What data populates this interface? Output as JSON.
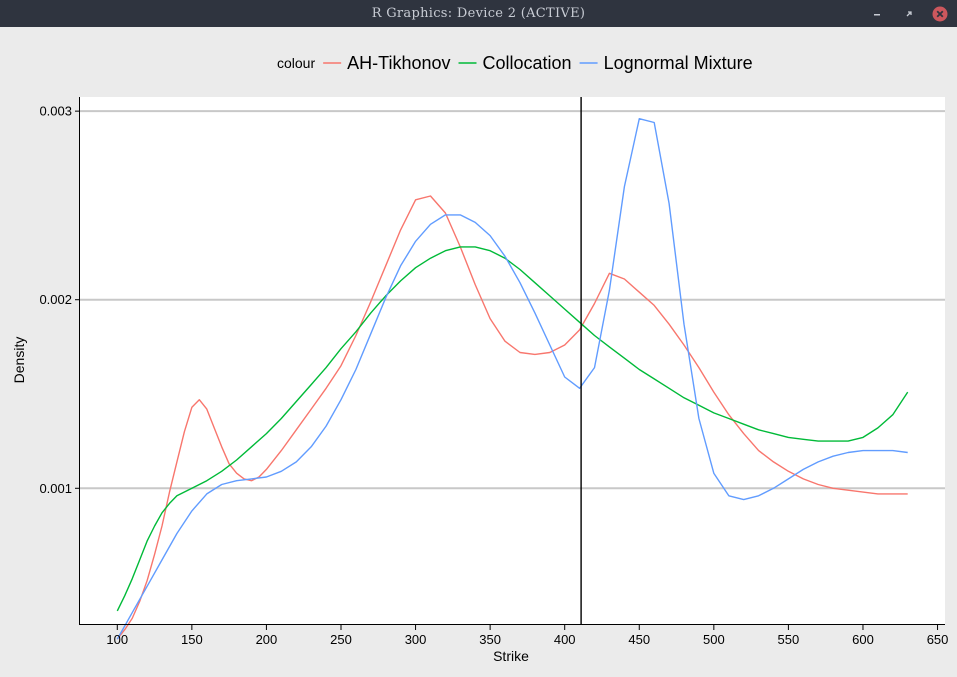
{
  "window": {
    "title": "R Graphics: Device 2 (ACTIVE)",
    "colors": {
      "titlebar_bg": "#2f343f",
      "titlebar_text": "#c8ccd4",
      "close_bg": "#cc575d"
    }
  },
  "chart_data": {
    "type": "line",
    "title": "",
    "xlabel": "Strike",
    "ylabel": "Density",
    "xlim": [
      75,
      655
    ],
    "ylim": [
      0.000275,
      0.003075
    ],
    "x_ticks": [
      100,
      150,
      200,
      250,
      300,
      350,
      400,
      450,
      500,
      550,
      600,
      650
    ],
    "y_ticks": [
      0.001,
      0.002,
      0.003
    ],
    "y_tick_labels": [
      "0.001",
      "0.002",
      "0.003"
    ],
    "grid": "horizontal major lines",
    "vline": 411,
    "legend": {
      "title": "colour",
      "position": "top"
    },
    "series": [
      {
        "name": "AH-Tikhonov",
        "color": "#f8766d",
        "points": [
          [
            100,
            0.0002
          ],
          [
            105,
            0.00025
          ],
          [
            110,
            0.00031
          ],
          [
            115,
            0.0004
          ],
          [
            120,
            0.00051
          ],
          [
            125,
            0.00065
          ],
          [
            130,
            0.0008
          ],
          [
            135,
            0.00098
          ],
          [
            140,
            0.00114
          ],
          [
            145,
            0.0013
          ],
          [
            150,
            0.00143
          ],
          [
            155,
            0.00147
          ],
          [
            160,
            0.00142
          ],
          [
            165,
            0.00132
          ],
          [
            170,
            0.00122
          ],
          [
            175,
            0.00113
          ],
          [
            180,
            0.00108
          ],
          [
            185,
            0.00105
          ],
          [
            190,
            0.00104
          ],
          [
            195,
            0.00106
          ],
          [
            200,
            0.0011
          ],
          [
            210,
            0.0012
          ],
          [
            220,
            0.00131
          ],
          [
            230,
            0.00142
          ],
          [
            240,
            0.00153
          ],
          [
            250,
            0.00165
          ],
          [
            260,
            0.00181
          ],
          [
            270,
            0.00199
          ],
          [
            280,
            0.00218
          ],
          [
            290,
            0.00237
          ],
          [
            300,
            0.00253
          ],
          [
            310,
            0.00255
          ],
          [
            320,
            0.00246
          ],
          [
            330,
            0.00228
          ],
          [
            340,
            0.00208
          ],
          [
            350,
            0.0019
          ],
          [
            360,
            0.00178
          ],
          [
            370,
            0.00172
          ],
          [
            380,
            0.00171
          ],
          [
            390,
            0.00172
          ],
          [
            400,
            0.00176
          ],
          [
            410,
            0.00184
          ],
          [
            420,
            0.00198
          ],
          [
            430,
            0.00214
          ],
          [
            440,
            0.00211
          ],
          [
            450,
            0.00204
          ],
          [
            460,
            0.00197
          ],
          [
            470,
            0.00187
          ],
          [
            480,
            0.00176
          ],
          [
            490,
            0.00164
          ],
          [
            500,
            0.00151
          ],
          [
            510,
            0.00139
          ],
          [
            520,
            0.00129
          ],
          [
            530,
            0.0012
          ],
          [
            540,
            0.00114
          ],
          [
            550,
            0.00109
          ],
          [
            560,
            0.00105
          ],
          [
            570,
            0.00102
          ],
          [
            580,
            0.001
          ],
          [
            590,
            0.00099
          ],
          [
            600,
            0.00098
          ],
          [
            610,
            0.00097
          ],
          [
            620,
            0.00097
          ],
          [
            630,
            0.00097
          ]
        ]
      },
      {
        "name": "Collocation",
        "color": "#00ba38",
        "points": [
          [
            100,
            0.00035
          ],
          [
            105,
            0.00043
          ],
          [
            110,
            0.00052
          ],
          [
            115,
            0.00062
          ],
          [
            120,
            0.00072
          ],
          [
            125,
            0.0008
          ],
          [
            130,
            0.00087
          ],
          [
            135,
            0.00092
          ],
          [
            140,
            0.00096
          ],
          [
            150,
            0.001
          ],
          [
            160,
            0.00104
          ],
          [
            170,
            0.00109
          ],
          [
            180,
            0.00115
          ],
          [
            190,
            0.00122
          ],
          [
            200,
            0.00129
          ],
          [
            210,
            0.00137
          ],
          [
            220,
            0.00146
          ],
          [
            230,
            0.00155
          ],
          [
            240,
            0.00164
          ],
          [
            250,
            0.00174
          ],
          [
            260,
            0.00183
          ],
          [
            270,
            0.00193
          ],
          [
            280,
            0.00202
          ],
          [
            290,
            0.0021
          ],
          [
            300,
            0.00217
          ],
          [
            310,
            0.00222
          ],
          [
            320,
            0.00226
          ],
          [
            330,
            0.00228
          ],
          [
            340,
            0.00228
          ],
          [
            350,
            0.00226
          ],
          [
            360,
            0.00222
          ],
          [
            370,
            0.00216
          ],
          [
            380,
            0.00209
          ],
          [
            390,
            0.00202
          ],
          [
            400,
            0.00195
          ],
          [
            410,
            0.00188
          ],
          [
            420,
            0.00181
          ],
          [
            430,
            0.00175
          ],
          [
            440,
            0.00169
          ],
          [
            450,
            0.00163
          ],
          [
            460,
            0.00158
          ],
          [
            470,
            0.00153
          ],
          [
            480,
            0.00148
          ],
          [
            490,
            0.00144
          ],
          [
            500,
            0.0014
          ],
          [
            510,
            0.00137
          ],
          [
            520,
            0.00134
          ],
          [
            530,
            0.00131
          ],
          [
            540,
            0.00129
          ],
          [
            550,
            0.00127
          ],
          [
            560,
            0.00126
          ],
          [
            570,
            0.00125
          ],
          [
            580,
            0.00125
          ],
          [
            590,
            0.00125
          ],
          [
            600,
            0.00127
          ],
          [
            610,
            0.00132
          ],
          [
            620,
            0.00139
          ],
          [
            630,
            0.00151
          ]
        ]
      },
      {
        "name": "Lognormal Mixture",
        "color": "#619cff",
        "points": [
          [
            100,
            0.0002
          ],
          [
            110,
            0.00034
          ],
          [
            120,
            0.00048
          ],
          [
            130,
            0.00062
          ],
          [
            140,
            0.00076
          ],
          [
            150,
            0.00088
          ],
          [
            160,
            0.00097
          ],
          [
            170,
            0.00102
          ],
          [
            180,
            0.00104
          ],
          [
            190,
            0.00105
          ],
          [
            200,
            0.00106
          ],
          [
            210,
            0.00109
          ],
          [
            220,
            0.00114
          ],
          [
            230,
            0.00122
          ],
          [
            240,
            0.00133
          ],
          [
            250,
            0.00147
          ],
          [
            260,
            0.00163
          ],
          [
            270,
            0.00182
          ],
          [
            280,
            0.00201
          ],
          [
            290,
            0.00218
          ],
          [
            300,
            0.00231
          ],
          [
            310,
            0.0024
          ],
          [
            320,
            0.00245
          ],
          [
            330,
            0.00245
          ],
          [
            340,
            0.00241
          ],
          [
            350,
            0.00234
          ],
          [
            360,
            0.00223
          ],
          [
            370,
            0.00209
          ],
          [
            380,
            0.00193
          ],
          [
            390,
            0.00176
          ],
          [
            400,
            0.00159
          ],
          [
            410,
            0.00153
          ],
          [
            420,
            0.00164
          ],
          [
            430,
            0.00205
          ],
          [
            440,
            0.0026
          ],
          [
            450,
            0.00296
          ],
          [
            460,
            0.00294
          ],
          [
            470,
            0.00251
          ],
          [
            480,
            0.00187
          ],
          [
            490,
            0.00137
          ],
          [
            500,
            0.00108
          ],
          [
            510,
            0.00096
          ],
          [
            520,
            0.00094
          ],
          [
            530,
            0.00096
          ],
          [
            540,
            0.001
          ],
          [
            550,
            0.00105
          ],
          [
            560,
            0.0011
          ],
          [
            570,
            0.00114
          ],
          [
            580,
            0.00117
          ],
          [
            590,
            0.00119
          ],
          [
            600,
            0.0012
          ],
          [
            610,
            0.0012
          ],
          [
            620,
            0.0012
          ],
          [
            630,
            0.00119
          ]
        ]
      }
    ]
  }
}
